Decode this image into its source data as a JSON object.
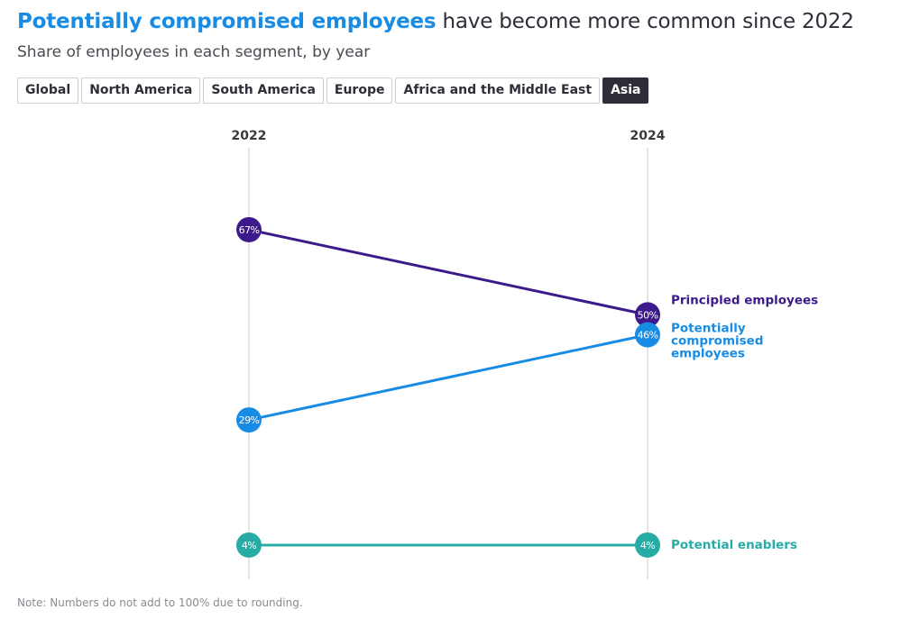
{
  "header": {
    "title_highlight": "Potentially compromised employees",
    "title_rest": " have become more common since 2022",
    "subtitle": "Share of employees in each segment, by year"
  },
  "tabs": [
    {
      "label": "Global",
      "active": false
    },
    {
      "label": "North America",
      "active": false
    },
    {
      "label": "South America",
      "active": false
    },
    {
      "label": "Europe",
      "active": false
    },
    {
      "label": "Africa and the Middle East",
      "active": false
    },
    {
      "label": "Asia",
      "active": true
    }
  ],
  "note": "Note: Numbers do not add to 100% due to rounding.",
  "chart_data": {
    "type": "line",
    "subtype": "slope",
    "title": "Potentially compromised employees have become more common since 2022",
    "subtitle": "Share of employees in each segment, by year",
    "selected_region": "Asia",
    "x": [
      "2022",
      "2024"
    ],
    "unit": "%",
    "series": [
      {
        "name": "Principled employees",
        "label_lines": [
          "Principled employees"
        ],
        "values": [
          67,
          50
        ],
        "color": "#3d1a8c"
      },
      {
        "name": "Potentially compromised employees",
        "label_lines": [
          "Potentially",
          "compromised",
          "employees"
        ],
        "values": [
          29,
          46
        ],
        "color": "#188ce5"
      },
      {
        "name": "Potential enablers",
        "label_lines": [
          "Potential enablers"
        ],
        "values": [
          4,
          4
        ],
        "color": "#27aca5"
      }
    ],
    "grid": false,
    "legend": "right (direct labels)"
  }
}
